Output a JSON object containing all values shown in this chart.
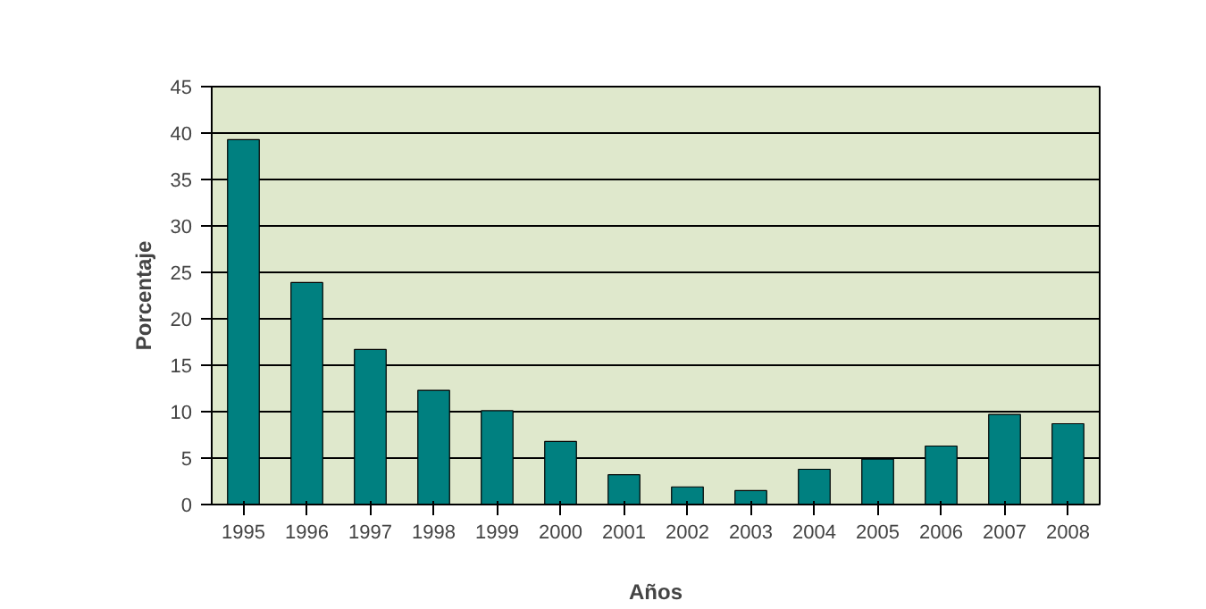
{
  "chart_data": {
    "type": "bar",
    "xlabel": "Años",
    "ylabel": "Porcentaje",
    "categories": [
      "1995",
      "1996",
      "1997",
      "1998",
      "1999",
      "2000",
      "2001",
      "2002",
      "2003",
      "2004",
      "2005",
      "2006",
      "2007",
      "2008"
    ],
    "values": [
      39.3,
      23.9,
      16.7,
      12.3,
      10.1,
      6.8,
      3.2,
      1.9,
      1.5,
      3.8,
      4.9,
      6.3,
      9.7,
      8.7
    ],
    "color": "#008080",
    "ylim": [
      0,
      45
    ],
    "yticks": [
      0,
      5,
      10,
      15,
      20,
      25,
      30,
      35,
      40,
      45
    ],
    "grid": "y"
  }
}
